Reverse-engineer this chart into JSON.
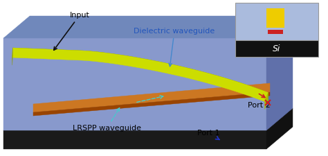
{
  "fig_width": 4.74,
  "fig_height": 2.25,
  "dpi": 100,
  "background_color": "#ffffff",
  "substrate_color": "#1a1a1a",
  "substrate_top_color": "#222222",
  "substrate_right_color": "#111111",
  "clad_front_color": "#8899cc",
  "clad_top_color": "#7088bb",
  "clad_right_color": "#6070aa",
  "clad_back_top_color": "#aabbdd",
  "dielectric_top_color": "#ccdd00",
  "dielectric_side_color": "#889900",
  "dielectric_end_color": "#aabb00",
  "lrspp_top_color": "#cc7722",
  "lrspp_side_color": "#994400",
  "inset_bg_blue": "#aabbdd",
  "inset_bg_black": "#111111",
  "inset_wg_yellow": "#eecc00",
  "inset_strip_red": "#cc2222",
  "label_input": "Input",
  "label_dielectric": "Dielectric waveguide",
  "label_lrspp": "LRSPP waveguide",
  "label_port1": "Port 1",
  "label_port2": "Port 2",
  "label_si": "Si",
  "text_color_main": "#000000",
  "text_color_blue": "#2255bb",
  "text_color_white": "#ffffff",
  "arrow_black": "#111111",
  "arrow_blue": "#4488cc",
  "arrow_cyan": "#44cccc",
  "arrow_red": "#cc2222",
  "arrow_dark_blue": "#2233cc"
}
